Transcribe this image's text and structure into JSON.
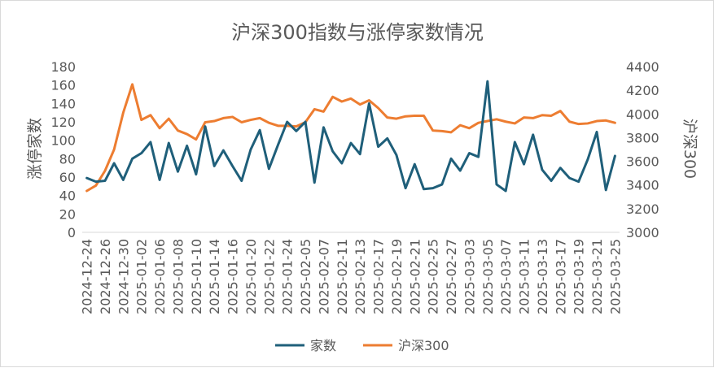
{
  "chart_data": {
    "type": "line",
    "title": "沪深300指数与涨停家数情况",
    "ylabel": "涨停家数",
    "y2label": "沪深300",
    "ylim": [
      0,
      180
    ],
    "yticks": [
      0,
      20,
      40,
      60,
      80,
      100,
      120,
      140,
      160,
      180
    ],
    "y2lim": [
      3000,
      4400
    ],
    "y2ticks": [
      3000,
      3200,
      3400,
      3600,
      3800,
      4000,
      4200,
      4400
    ],
    "grid": false,
    "legend": "bottom",
    "x_tick_labels": [
      "2024-12-24",
      "2024-12-26",
      "2024-12-30",
      "2025-01-02",
      "2025-01-06",
      "2025-01-08",
      "2025-01-10",
      "2025-01-14",
      "2025-01-16",
      "2025-01-20",
      "2025-01-22",
      "2025-01-24",
      "2025-02-05",
      "2025-02-07",
      "2025-02-11",
      "2025-02-13",
      "2025-02-17",
      "2025-02-19",
      "2025-02-21",
      "2025-02-25",
      "2025-02-27",
      "2025-03-03",
      "2025-03-05",
      "2025-03-07",
      "2025-03-11",
      "2025-03-13",
      "2025-03-17",
      "2025-03-19",
      "2025-03-21",
      "2025-03-25"
    ],
    "x": [
      "2024-12-24",
      "2024-12-25",
      "2024-12-26",
      "2024-12-27",
      "2024-12-30",
      "2024-12-31",
      "2025-01-02",
      "2025-01-03",
      "2025-01-06",
      "2025-01-07",
      "2025-01-08",
      "2025-01-09",
      "2025-01-10",
      "2025-01-13",
      "2025-01-14",
      "2025-01-15",
      "2025-01-16",
      "2025-01-17",
      "2025-01-20",
      "2025-01-21",
      "2025-01-22",
      "2025-01-23",
      "2025-01-24",
      "2025-01-27",
      "2025-02-05",
      "2025-02-06",
      "2025-02-07",
      "2025-02-10",
      "2025-02-11",
      "2025-02-12",
      "2025-02-13",
      "2025-02-14",
      "2025-02-17",
      "2025-02-18",
      "2025-02-19",
      "2025-02-20",
      "2025-02-21",
      "2025-02-24",
      "2025-02-25",
      "2025-02-26",
      "2025-02-27",
      "2025-02-28",
      "2025-03-03",
      "2025-03-04",
      "2025-03-05",
      "2025-03-06",
      "2025-03-07",
      "2025-03-10",
      "2025-03-11",
      "2025-03-12",
      "2025-03-13",
      "2025-03-14",
      "2025-03-17",
      "2025-03-18",
      "2025-03-19",
      "2025-03-20",
      "2025-03-21",
      "2025-03-24",
      "2025-03-25"
    ],
    "series": [
      {
        "name": "家数",
        "color": "#1f5f7a",
        "axis": "left",
        "values": [
          59,
          55,
          56,
          75,
          57,
          80,
          86,
          98,
          57,
          97,
          66,
          94,
          63,
          115,
          72,
          89,
          72,
          56,
          90,
          111,
          69,
          95,
          120,
          110,
          120,
          54,
          114,
          88,
          75,
          97,
          85,
          140,
          93,
          102,
          84,
          48,
          74,
          47,
          48,
          52,
          80,
          67,
          86,
          82,
          164,
          52,
          45,
          98,
          74,
          106,
          68,
          56,
          70,
          59,
          55,
          79,
          109,
          46,
          83
        ]
      },
      {
        "name": "沪深300",
        "color": "#ed7d31",
        "axis": "right",
        "values": [
          3350,
          3395,
          3520,
          3700,
          4010,
          4250,
          3950,
          3990,
          3880,
          3960,
          3860,
          3830,
          3785,
          3930,
          3940,
          3965,
          3975,
          3930,
          3950,
          3965,
          3925,
          3900,
          3900,
          3895,
          3930,
          4040,
          4020,
          4145,
          4105,
          4130,
          4080,
          4115,
          4050,
          3970,
          3960,
          3980,
          3985,
          3985,
          3860,
          3855,
          3845,
          3905,
          3880,
          3925,
          3940,
          3955,
          3935,
          3920,
          3970,
          3965,
          3990,
          3985,
          4025,
          3935,
          3915,
          3920,
          3940,
          3945,
          3925
        ]
      }
    ]
  }
}
